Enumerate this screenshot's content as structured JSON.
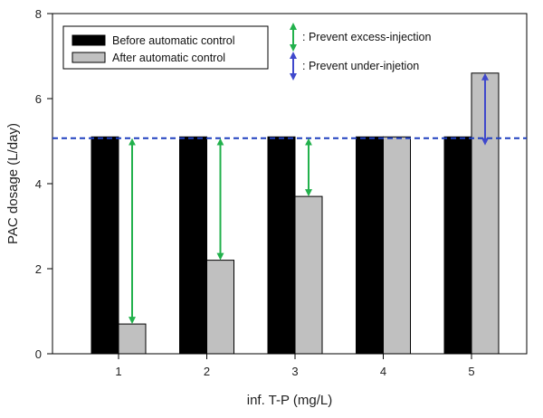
{
  "chart_data": {
    "type": "bar",
    "xlabel": "inf. T-P (mg/L)",
    "ylabel": "PAC dosage (L/day)",
    "ylim": [
      0,
      8
    ],
    "yticks": [
      0,
      2,
      4,
      6,
      8
    ],
    "categories": [
      "1",
      "2",
      "3",
      "4",
      "5"
    ],
    "series": [
      {
        "name": "Before automatic control",
        "color": "#000000",
        "values": [
          5.1,
          5.1,
          5.1,
          5.1,
          5.1
        ]
      },
      {
        "name": "After automatic control",
        "color": "#c0c0c0",
        "values": [
          0.7,
          2.2,
          3.7,
          5.1,
          6.6
        ]
      }
    ],
    "reference_line": {
      "value": 5.07,
      "style": "dashed",
      "color": "#1f3fbf"
    },
    "legend": {
      "placement": "top-left"
    },
    "annotations": [
      {
        "label": ": Prevent excess-injection",
        "color": "#22b14c",
        "type": "double-arrow"
      },
      {
        "label": ": Prevent under-injetion",
        "color": "#3f48cc",
        "type": "double-arrow"
      }
    ],
    "arrows": [
      {
        "category": "1",
        "from": 5.07,
        "to": 0.7,
        "color": "#22b14c"
      },
      {
        "category": "2",
        "from": 5.07,
        "to": 2.2,
        "color": "#22b14c"
      },
      {
        "category": "3",
        "from": 5.07,
        "to": 3.7,
        "color": "#22b14c"
      },
      {
        "category": "5",
        "from": 5.07,
        "to": 6.6,
        "color": "#3f48cc"
      }
    ],
    "grid": false
  }
}
